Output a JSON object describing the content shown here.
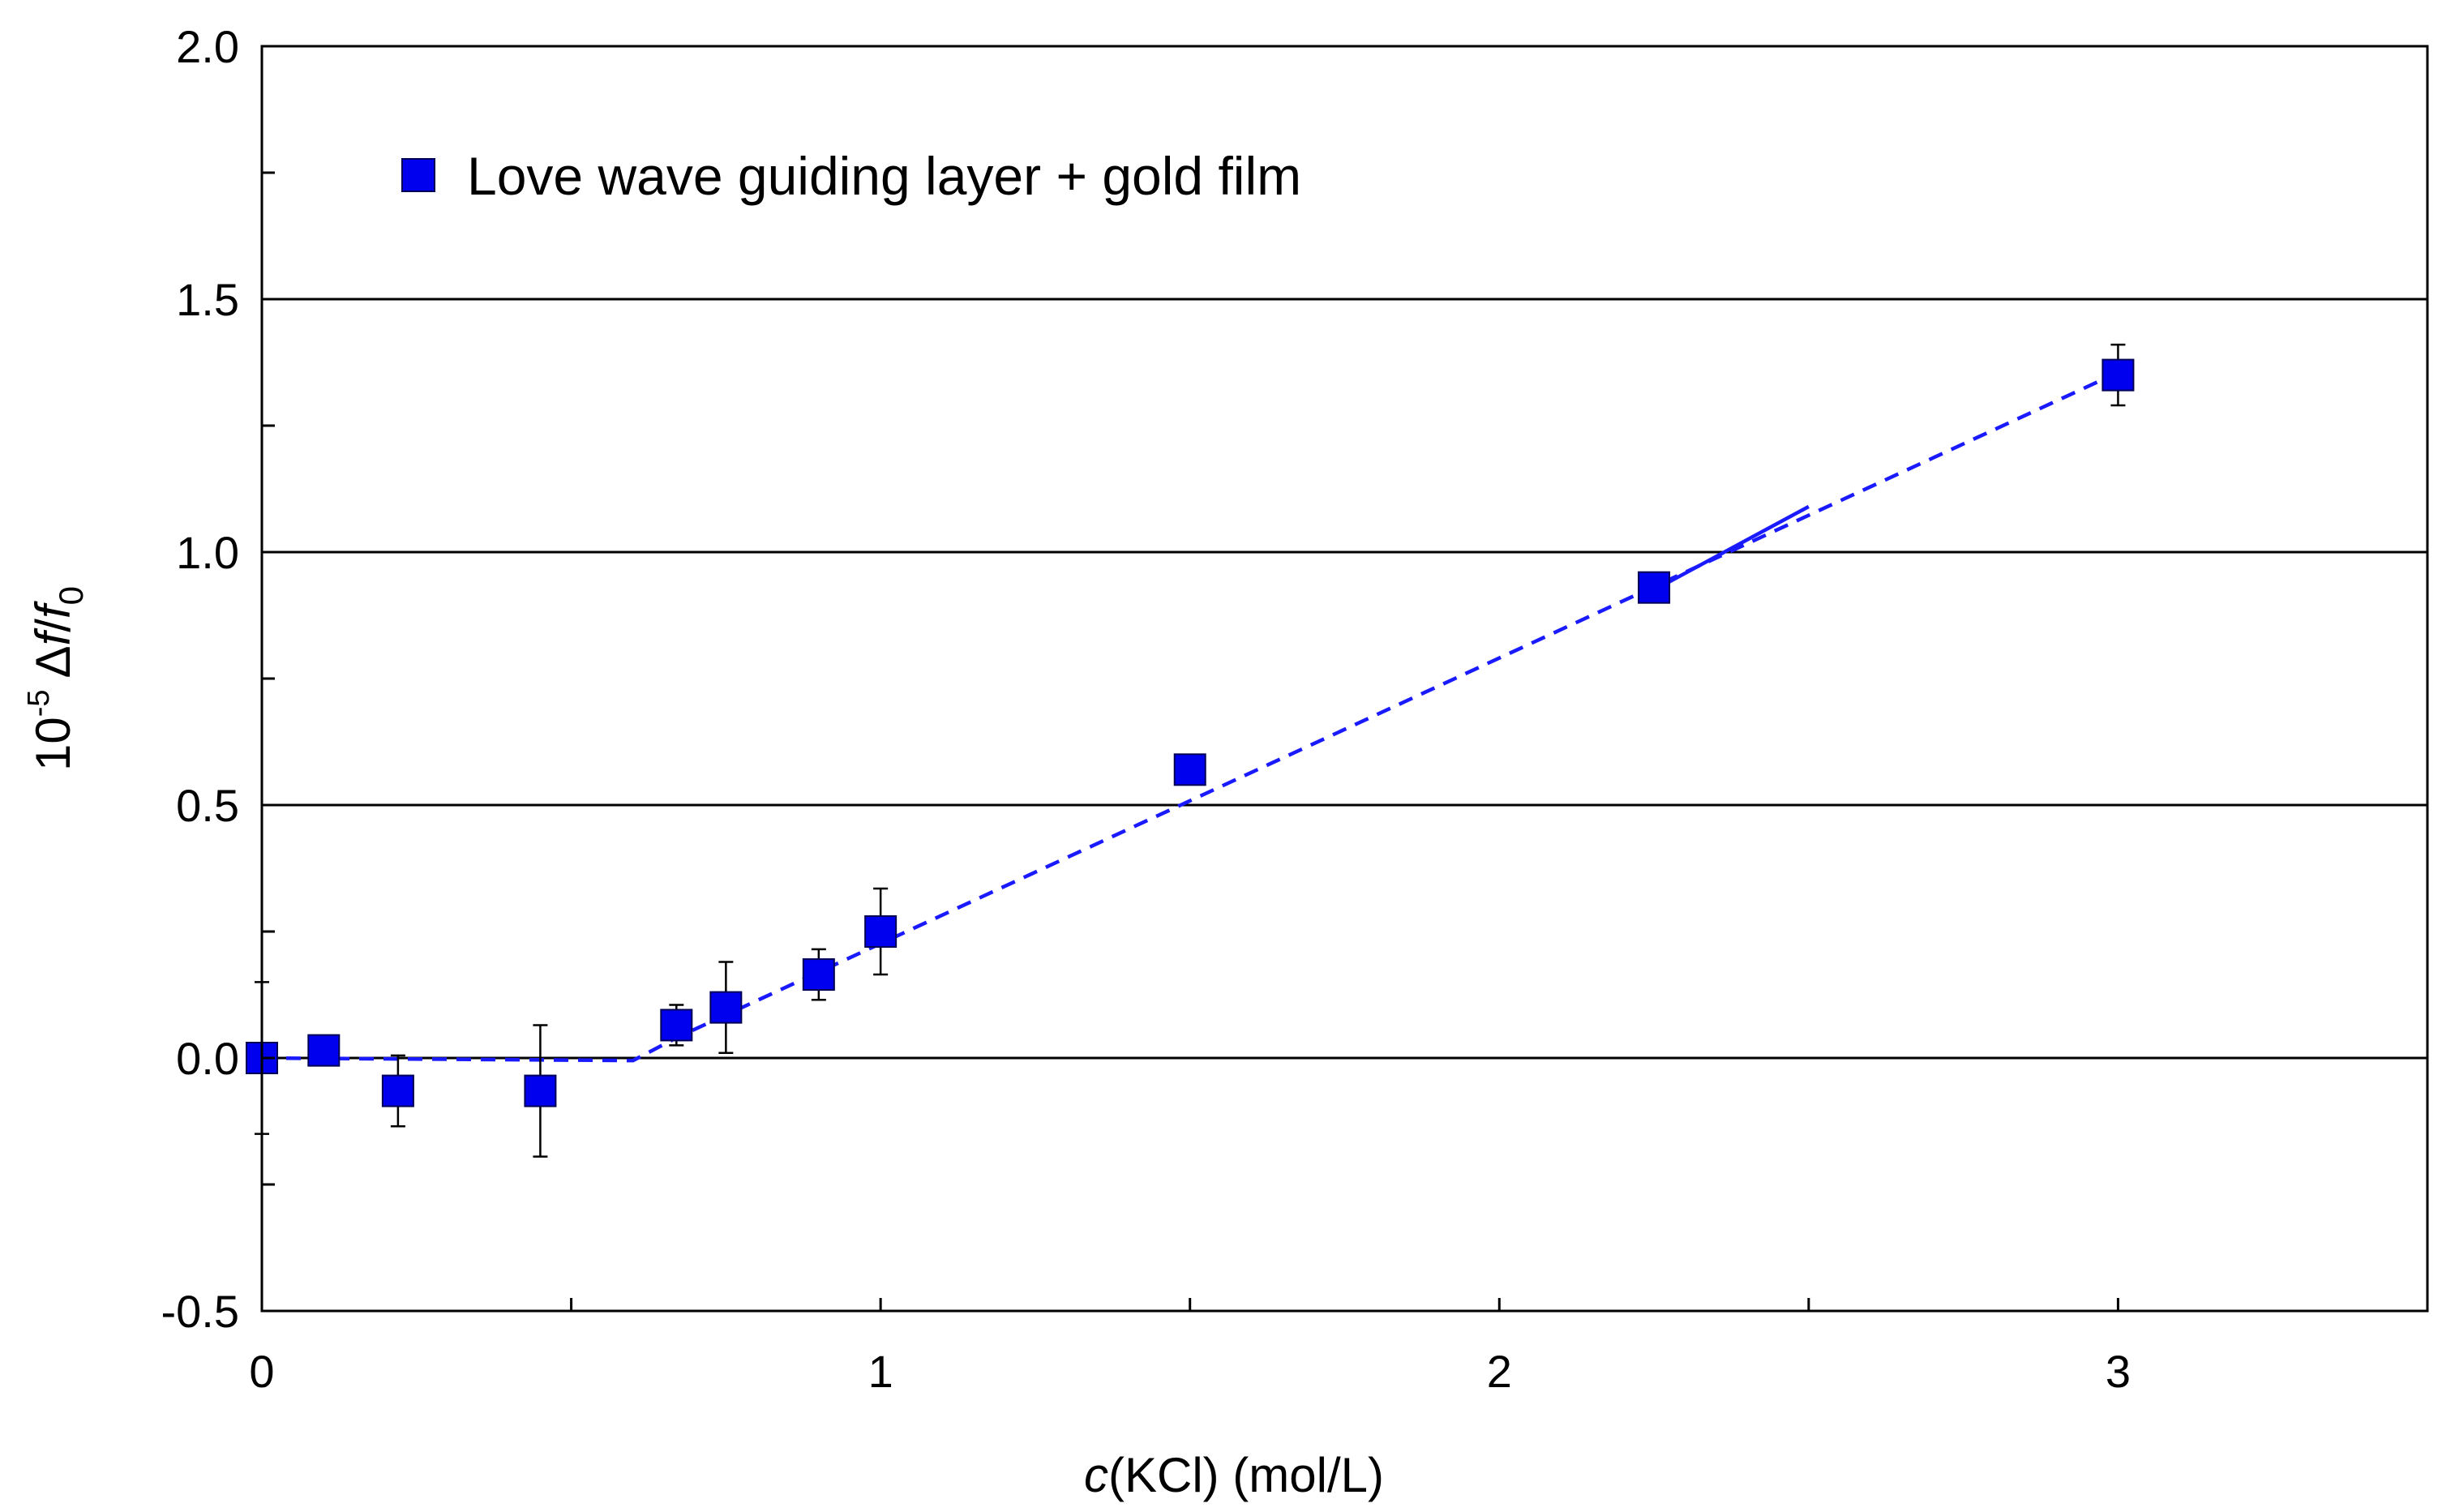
{
  "chart_data": {
    "type": "scatter",
    "title": "",
    "xlabel": {
      "prefix": "c",
      "rest": "(KCl) (mol/L)"
    },
    "ylabel": {
      "base": "10",
      "exp": "-5",
      "delta": "Δ",
      "f": "f",
      "slash": "/",
      "f0": "f",
      "sub": "0"
    },
    "xlim": [
      0,
      3.5
    ],
    "ylim": [
      -0.5,
      2.0
    ],
    "x_ticks": [
      0,
      1,
      2,
      3
    ],
    "x_tick_labels": [
      "0",
      "1",
      "2",
      "3"
    ],
    "x_minor_ticks": [
      0.5,
      1.5,
      2.5
    ],
    "y_ticks": [
      -0.5,
      0.0,
      0.5,
      1.0,
      1.5,
      2.0
    ],
    "y_tick_labels": [
      "-0.5",
      "0.0",
      "0.5",
      "1.0",
      "1.5",
      "2.0"
    ],
    "y_minor_ticks": [
      -0.25,
      0.25,
      0.75,
      1.25,
      1.75
    ],
    "gridlines_y": [
      0.0,
      0.5,
      1.0,
      1.5
    ],
    "legend": {
      "position": "top-left",
      "entries": [
        "Love wave guiding layer + gold film"
      ]
    },
    "colors": {
      "marker": "#0000ee",
      "marker_edge": "#000055",
      "fit_line": "#1a1aff",
      "grid": "#000000",
      "axis": "#000000",
      "error_bar": "#000000"
    },
    "series": [
      {
        "name": "Love wave guiding layer + gold film",
        "x": [
          0,
          0.1,
          0.22,
          0.45,
          0.67,
          0.75,
          0.9,
          1.0,
          1.5,
          2.25,
          3.0
        ],
        "y": [
          0.0,
          0.015,
          -0.065,
          -0.065,
          0.065,
          0.1,
          0.165,
          0.25,
          0.57,
          0.93,
          1.35
        ],
        "err": [
          0.15,
          0.0,
          0.07,
          0.13,
          0.04,
          0.09,
          0.05,
          0.085,
          0.0,
          0.0,
          0.06
        ]
      }
    ],
    "fit_lines": [
      {
        "style": "dashed",
        "points": [
          [
            0.0,
            0.0
          ],
          [
            0.6,
            -0.005
          ],
          [
            0.67,
            0.04
          ],
          [
            3.0,
            1.355
          ]
        ]
      },
      {
        "style": "solid",
        "points": [
          [
            2.25,
            0.925
          ],
          [
            2.5,
            1.09
          ]
        ]
      }
    ]
  }
}
